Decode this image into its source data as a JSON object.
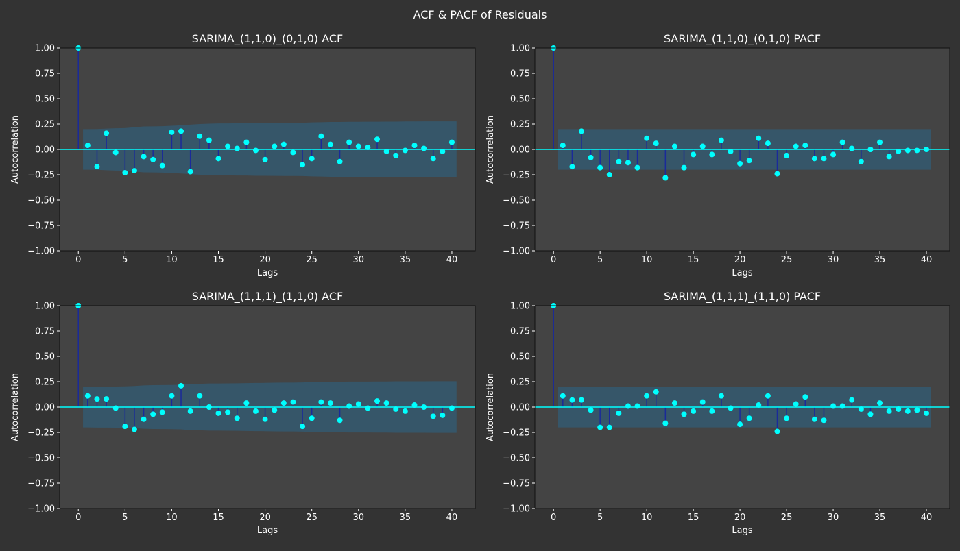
{
  "figure": {
    "title": "ACF & PACF of Residuals"
  },
  "colors": {
    "figure_bg": "#333333",
    "axes_bg": "#444444",
    "text": "#ffffff",
    "stem": "#1a2a9a",
    "marker": "#00ffff",
    "zero_line": "#00ffff",
    "confidence_band": "#365669"
  },
  "chart_data": [
    {
      "type": "stem",
      "title": "SARIMA_(1,1,0)_(0,1,0) ACF",
      "xlabel": "Lags",
      "ylabel": "Autocorrelation",
      "xlim": [
        -2,
        42.5
      ],
      "ylim": [
        -1.0,
        1.0
      ],
      "xticks": [
        "0",
        "5",
        "10",
        "15",
        "20",
        "25",
        "30",
        "35",
        "40"
      ],
      "yticks": [
        "1.00",
        "0.75",
        "0.50",
        "0.25",
        "0.00",
        "−0.25",
        "−0.50",
        "−0.75",
        "−1.00"
      ],
      "grid": false,
      "x": [
        0,
        1,
        2,
        3,
        4,
        5,
        6,
        7,
        8,
        9,
        10,
        11,
        12,
        13,
        14,
        15,
        16,
        17,
        18,
        19,
        20,
        21,
        22,
        23,
        24,
        25,
        26,
        27,
        28,
        29,
        30,
        31,
        32,
        33,
        34,
        35,
        36,
        37,
        38,
        39,
        40
      ],
      "values": [
        1.0,
        0.04,
        -0.17,
        0.16,
        -0.03,
        -0.23,
        -0.21,
        -0.07,
        -0.1,
        -0.16,
        0.17,
        0.18,
        -0.22,
        0.13,
        0.09,
        -0.09,
        0.03,
        0.01,
        0.07,
        -0.01,
        -0.1,
        0.03,
        0.05,
        -0.03,
        -0.15,
        -0.09,
        0.13,
        0.05,
        -0.12,
        0.07,
        0.03,
        0.02,
        0.1,
        -0.02,
        -0.06,
        -0.01,
        0.04,
        0.01,
        -0.09,
        -0.02,
        0.07
      ],
      "confidence_x": [
        0.5,
        1,
        2,
        3,
        4,
        5,
        6,
        7,
        8,
        9,
        10,
        11,
        12,
        13,
        14,
        15,
        16,
        17,
        18,
        19,
        20,
        21,
        22,
        23,
        24,
        25,
        26,
        27,
        28,
        29,
        30,
        31,
        32,
        33,
        34,
        35,
        36,
        37,
        38,
        39,
        40,
        40.5
      ],
      "confidence": [
        0.2,
        0.2,
        0.201,
        0.205,
        0.209,
        0.21,
        0.219,
        0.226,
        0.227,
        0.229,
        0.233,
        0.238,
        0.244,
        0.25,
        0.253,
        0.256,
        0.256,
        0.258,
        0.258,
        0.26,
        0.26,
        0.261,
        0.262,
        0.262,
        0.263,
        0.266,
        0.268,
        0.27,
        0.27,
        0.272,
        0.272,
        0.273,
        0.273,
        0.274,
        0.274,
        0.275,
        0.275,
        0.276,
        0.276,
        0.276,
        0.276,
        0.276
      ]
    },
    {
      "type": "stem",
      "title": "SARIMA_(1,1,0)_(0,1,0) PACF",
      "xlabel": "Lags",
      "ylabel": "Autocorrelation",
      "xlim": [
        -2,
        42.5
      ],
      "ylim": [
        -1.0,
        1.0
      ],
      "xticks": [
        "0",
        "5",
        "10",
        "15",
        "20",
        "25",
        "30",
        "35",
        "40"
      ],
      "yticks": [
        "1.00",
        "0.75",
        "0.50",
        "0.25",
        "0.00",
        "−0.25",
        "−0.50",
        "−0.75",
        "−1.00"
      ],
      "grid": false,
      "x": [
        0,
        1,
        2,
        3,
        4,
        5,
        6,
        7,
        8,
        9,
        10,
        11,
        12,
        13,
        14,
        15,
        16,
        17,
        18,
        19,
        20,
        21,
        22,
        23,
        24,
        25,
        26,
        27,
        28,
        29,
        30,
        31,
        32,
        33,
        34,
        35,
        36,
        37,
        38,
        39,
        40
      ],
      "values": [
        1.0,
        0.04,
        -0.17,
        0.18,
        -0.08,
        -0.18,
        -0.25,
        -0.12,
        -0.13,
        -0.18,
        0.11,
        0.06,
        -0.28,
        0.03,
        -0.18,
        -0.05,
        0.03,
        -0.05,
        0.09,
        -0.02,
        -0.14,
        -0.11,
        0.11,
        0.06,
        -0.24,
        -0.06,
        0.03,
        0.04,
        -0.09,
        -0.09,
        -0.05,
        0.07,
        0.01,
        -0.12,
        0.0,
        0.07,
        -0.07,
        -0.02,
        -0.01,
        -0.01,
        0.0
      ],
      "confidence_x": [
        0.5,
        40.5
      ],
      "confidence": [
        0.2,
        0.2
      ]
    },
    {
      "type": "stem",
      "title": "SARIMA_(1,1,1)_(1,1,0) ACF",
      "xlabel": "Lags",
      "ylabel": "Autocorrelation",
      "xlim": [
        -2,
        42.5
      ],
      "ylim": [
        -1.0,
        1.0
      ],
      "xticks": [
        "0",
        "5",
        "10",
        "15",
        "20",
        "25",
        "30",
        "35",
        "40"
      ],
      "yticks": [
        "1.00",
        "0.75",
        "0.50",
        "0.25",
        "0.00",
        "−0.25",
        "−0.50",
        "−0.75",
        "−1.00"
      ],
      "grid": false,
      "x": [
        0,
        1,
        2,
        3,
        4,
        5,
        6,
        7,
        8,
        9,
        10,
        11,
        12,
        13,
        14,
        15,
        16,
        17,
        18,
        19,
        20,
        21,
        22,
        23,
        24,
        25,
        26,
        27,
        28,
        29,
        30,
        31,
        32,
        33,
        34,
        35,
        36,
        37,
        38,
        39,
        40
      ],
      "values": [
        1.0,
        0.11,
        0.08,
        0.08,
        -0.01,
        -0.19,
        -0.22,
        -0.12,
        -0.07,
        -0.05,
        0.11,
        0.21,
        -0.04,
        0.11,
        0.0,
        -0.06,
        -0.05,
        -0.11,
        0.04,
        -0.04,
        -0.12,
        -0.03,
        0.04,
        0.05,
        -0.19,
        -0.11,
        0.05,
        0.04,
        -0.13,
        0.01,
        0.03,
        -0.01,
        0.06,
        0.04,
        -0.02,
        -0.04,
        0.02,
        0.0,
        -0.09,
        -0.08,
        -0.01
      ],
      "confidence_x": [
        0.5,
        1,
        2,
        3,
        4,
        5,
        6,
        7,
        8,
        9,
        10,
        11,
        12,
        13,
        14,
        15,
        16,
        17,
        18,
        19,
        20,
        21,
        22,
        23,
        24,
        25,
        26,
        27,
        28,
        29,
        30,
        31,
        32,
        33,
        34,
        35,
        36,
        37,
        38,
        39,
        40,
        40.5
      ],
      "confidence": [
        0.2,
        0.2,
        0.202,
        0.202,
        0.203,
        0.204,
        0.208,
        0.214,
        0.216,
        0.217,
        0.218,
        0.22,
        0.228,
        0.229,
        0.232,
        0.232,
        0.233,
        0.234,
        0.236,
        0.237,
        0.238,
        0.24,
        0.241,
        0.241,
        0.242,
        0.246,
        0.248,
        0.248,
        0.249,
        0.251,
        0.251,
        0.251,
        0.252,
        0.252,
        0.253,
        0.253,
        0.253,
        0.253,
        0.254,
        0.254,
        0.254,
        0.254
      ]
    },
    {
      "type": "stem",
      "title": "SARIMA_(1,1,1)_(1,1,0) PACF",
      "xlabel": "Lags",
      "ylabel": "Autocorrelation",
      "xlim": [
        -2,
        42.5
      ],
      "ylim": [
        -1.0,
        1.0
      ],
      "xticks": [
        "0",
        "5",
        "10",
        "15",
        "20",
        "25",
        "30",
        "35",
        "40"
      ],
      "yticks": [
        "1.00",
        "0.75",
        "0.50",
        "0.25",
        "0.00",
        "−0.25",
        "−0.50",
        "−0.75",
        "−1.00"
      ],
      "grid": false,
      "x": [
        0,
        1,
        2,
        3,
        4,
        5,
        6,
        7,
        8,
        9,
        10,
        11,
        12,
        13,
        14,
        15,
        16,
        17,
        18,
        19,
        20,
        21,
        22,
        23,
        24,
        25,
        26,
        27,
        28,
        29,
        30,
        31,
        32,
        33,
        34,
        35,
        36,
        37,
        38,
        39,
        40
      ],
      "values": [
        1.0,
        0.11,
        0.07,
        0.07,
        -0.03,
        -0.2,
        -0.2,
        -0.06,
        0.01,
        0.01,
        0.11,
        0.15,
        -0.16,
        0.04,
        -0.07,
        -0.04,
        0.05,
        -0.04,
        0.11,
        -0.01,
        -0.17,
        -0.11,
        0.02,
        0.11,
        -0.24,
        -0.11,
        0.03,
        0.1,
        -0.12,
        -0.13,
        0.01,
        0.01,
        0.07,
        -0.02,
        -0.07,
        0.04,
        -0.04,
        -0.02,
        -0.04,
        -0.03,
        -0.06
      ],
      "confidence_x": [
        0.5,
        40.5
      ],
      "confidence": [
        0.2,
        0.2
      ]
    }
  ]
}
